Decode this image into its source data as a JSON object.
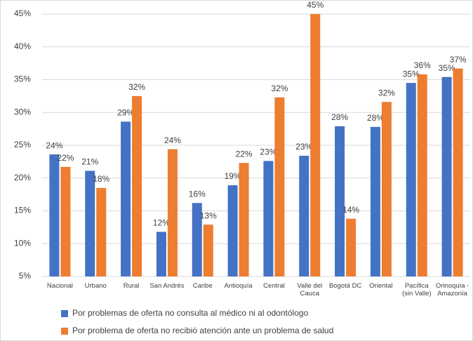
{
  "chart_data": {
    "type": "bar",
    "categories": [
      "Nacional",
      "Urbano",
      "Rural",
      "San Andrés",
      "Caribe",
      "Antioquía",
      "Central",
      "Valle del\nCauca",
      "Bogotá DC",
      "Oriental",
      "Pacífica\n(sin Valle)",
      "Orinoquía -\nAmazonía"
    ],
    "series": [
      {
        "name": "Por problemas de oferta no consulta al médico ni al odontólogo",
        "color": "#4472c4",
        "values": [
          23.6,
          21.1,
          28.6,
          11.8,
          16.2,
          18.9,
          22.6,
          23.4,
          27.9,
          27.8,
          34.5,
          35.4
        ],
        "value_labels": [
          "24%",
          "21%",
          "29%",
          "12%",
          "16%",
          "19%",
          "23%",
          "23%",
          "28%",
          "28%",
          "35%",
          "35%"
        ]
      },
      {
        "name": "Por problema de oferta no recibió atención ante un problema de salud",
        "color": "#ed7d31",
        "values": [
          21.7,
          18.5,
          32.5,
          24.4,
          12.9,
          22.3,
          32.3,
          45,
          13.8,
          31.6,
          35.8,
          36.7
        ],
        "value_labels": [
          "22%",
          "18%",
          "32%",
          "24%",
          "13%",
          "22%",
          "32%",
          "45%",
          "14%",
          "32%",
          "36%",
          "37%"
        ]
      }
    ],
    "ylim": [
      5,
      45
    ],
    "yticks": [
      {
        "value": 5,
        "label": "5%"
      },
      {
        "value": 10,
        "label": "10%"
      },
      {
        "value": 15,
        "label": "15%"
      },
      {
        "value": 20,
        "label": "20%"
      },
      {
        "value": 25,
        "label": "25%"
      },
      {
        "value": 30,
        "label": "30%"
      },
      {
        "value": 35,
        "label": "35%"
      },
      {
        "value": 40,
        "label": "40%"
      },
      {
        "value": 45,
        "label": "45%"
      }
    ],
    "grid": true,
    "legend": "bottom"
  }
}
